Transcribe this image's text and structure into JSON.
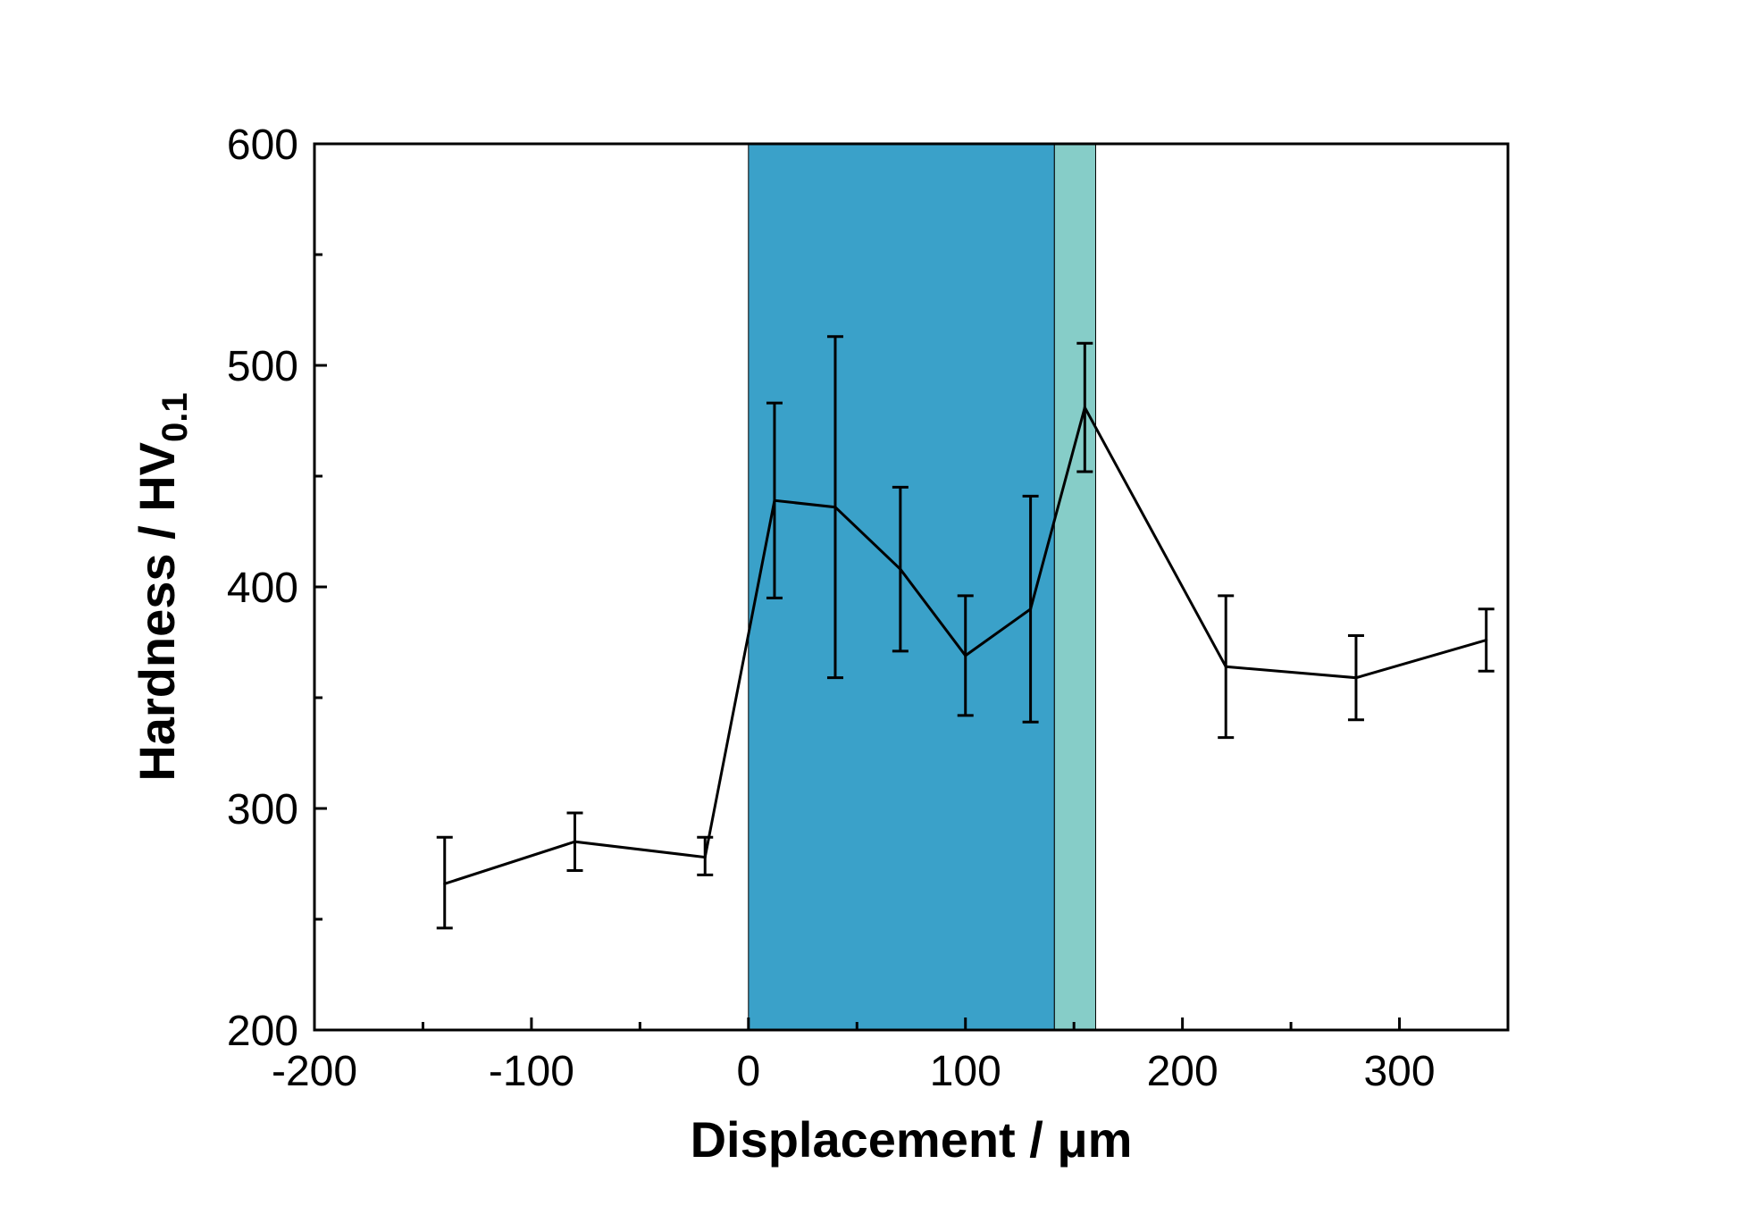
{
  "chart_data": {
    "type": "line",
    "title": "",
    "xlabel": "Displacement / μm",
    "ylabel": {
      "main": "Hardness / HV",
      "subscript": "0.1"
    },
    "xlim": [
      -200,
      350
    ],
    "ylim": [
      200,
      600
    ],
    "xticks": [
      -200,
      -100,
      0,
      100,
      200,
      300
    ],
    "yticks": [
      200,
      300,
      400,
      500,
      600
    ],
    "x_minor_step": 50,
    "y_minor_step": 50,
    "regions": [
      {
        "x0": 0,
        "x1": 141,
        "color": "#3aa1c9"
      },
      {
        "x0": 141,
        "x1": 160,
        "color": "#86cdc8"
      }
    ],
    "series": [
      {
        "name": "Hardness",
        "color": "#000000",
        "x": [
          -140,
          -80,
          -20,
          12,
          40,
          70,
          100,
          130,
          155,
          220,
          280,
          340
        ],
        "y": [
          266,
          285,
          278,
          439,
          436,
          408,
          369,
          390,
          481,
          364,
          359,
          376
        ],
        "err_low": [
          246,
          272,
          270,
          395,
          359,
          371,
          342,
          339,
          452,
          332,
          340,
          362
        ],
        "err_high": [
          287,
          298,
          287,
          483,
          513,
          445,
          396,
          441,
          510,
          396,
          378,
          390
        ]
      }
    ]
  }
}
